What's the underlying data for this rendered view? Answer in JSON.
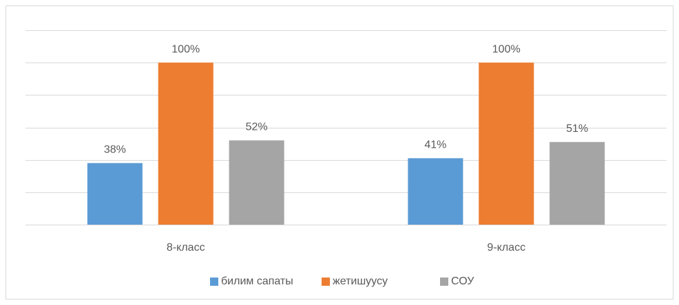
{
  "chart_data": {
    "type": "bar",
    "categories": [
      "8-класс",
      "9-класс"
    ],
    "series": [
      {
        "name": "билим сапаты",
        "color": "#5b9bd5",
        "values": [
          38,
          41
        ],
        "value_labels": [
          "38%",
          "41%"
        ]
      },
      {
        "name": "жетишуусу",
        "color": "#ed7d31",
        "values": [
          100,
          100
        ],
        "value_labels": [
          "100%",
          "100%"
        ]
      },
      {
        "name": "СОУ",
        "color": "#a5a5a5",
        "values": [
          52,
          51
        ],
        "value_labels": [
          "52%",
          "51%"
        ]
      }
    ],
    "ylim": [
      0,
      120
    ],
    "yticks": [
      0,
      20,
      40,
      60,
      80,
      100,
      120
    ],
    "grid": true,
    "legend": "bottom"
  }
}
